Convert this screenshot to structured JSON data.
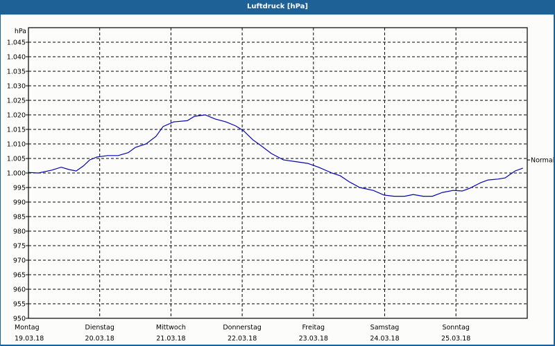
{
  "window": {
    "title": "Luftdruck [hPa]"
  },
  "chart_data": {
    "type": "line",
    "title": "Luftdruck [hPa]",
    "xlabel": "",
    "ylabel": "hPa",
    "ylim": [
      950,
      1050
    ],
    "grid": true,
    "y_ticks": [
      "950",
      "955",
      "960",
      "965",
      "970",
      "975",
      "980",
      "985",
      "990",
      "995",
      "1.000",
      "1.005",
      "1.010",
      "1.015",
      "1.020",
      "1.025",
      "1.030",
      "1.035",
      "1.040",
      "1.045"
    ],
    "x_ticks": [
      {
        "day": "Montag",
        "date": "19.03.18"
      },
      {
        "day": "Dienstag",
        "date": "20.03.18"
      },
      {
        "day": "Mittwoch",
        "date": "21.03.18"
      },
      {
        "day": "Donnerstag",
        "date": "22.03.18"
      },
      {
        "day": "Freitag",
        "date": "23.03.18"
      },
      {
        "day": "Samstag",
        "date": "24.03.18"
      },
      {
        "day": "Sonntag",
        "date": "25.03.18"
      }
    ],
    "reference_line": {
      "label": "Normal",
      "value": 1004.5
    },
    "series": [
      {
        "name": "Luftdruck",
        "color": "#0000b4",
        "x_days": [
          0.0,
          0.14,
          0.33,
          0.46,
          0.57,
          0.67,
          0.77,
          0.86,
          0.96,
          1.11,
          1.26,
          1.4,
          1.5,
          1.65,
          1.79,
          1.89,
          2.04,
          2.23,
          2.33,
          2.48,
          2.62,
          2.77,
          2.91,
          3.02,
          3.15,
          3.27,
          3.41,
          3.58,
          3.78,
          3.92,
          4.07,
          4.26,
          4.38,
          4.5,
          4.65,
          4.84,
          4.99,
          5.13,
          5.28,
          5.4,
          5.54,
          5.67,
          5.81,
          5.96,
          6.09,
          6.2,
          6.35,
          6.45,
          6.59,
          6.69,
          6.83,
          6.94
        ],
        "values": [
          1000.2,
          1000.0,
          1001.0,
          1002.0,
          1001.2,
          1000.7,
          1002.4,
          1004.5,
          1005.5,
          1006.0,
          1006.0,
          1007.0,
          1008.8,
          1010.0,
          1012.6,
          1016.0,
          1017.6,
          1018.0,
          1019.5,
          1020.0,
          1018.6,
          1017.6,
          1016.2,
          1014.5,
          1011.4,
          1009.3,
          1006.7,
          1004.5,
          1003.8,
          1003.3,
          1002.0,
          1000.0,
          999.0,
          997.0,
          995.0,
          994.0,
          992.4,
          992.0,
          992.0,
          992.6,
          992.0,
          992.0,
          993.3,
          994.0,
          993.8,
          994.8,
          996.7,
          997.6,
          997.9,
          998.3,
          1000.7,
          1001.7
        ]
      }
    ]
  }
}
